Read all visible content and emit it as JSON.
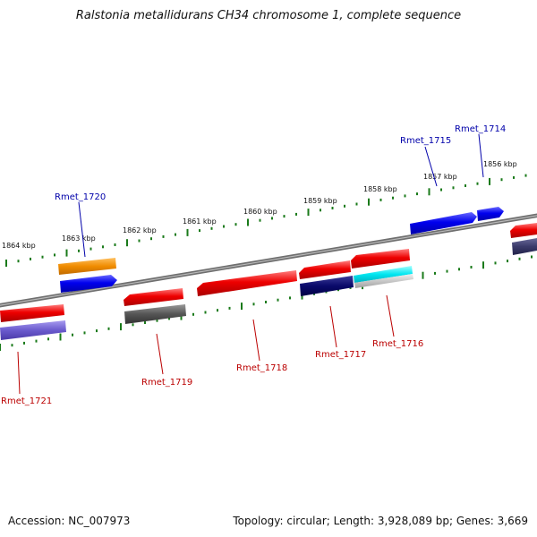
{
  "title": "Ralstonia metallidurans CH34 chromosome 1, complete sequence",
  "accession": "Accession: NC_007973",
  "summary": "Topology: circular; Length: 3,928,089 bp; Genes: 3,669",
  "scale_labels": [
    "1864 kbp",
    "1863 kbp",
    "1862 kbp",
    "1861 kbp",
    "1860 kbp",
    "1859 kbp",
    "1858 kbp",
    "1857 kbp",
    "1856 kbp"
  ],
  "genes": {
    "Rmet_1714": "Rmet_1714",
    "Rmet_1715": "Rmet_1715",
    "Rmet_1716": "Rmet_1716",
    "Rmet_1717": "Rmet_1717",
    "Rmet_1718": "Rmet_1718",
    "Rmet_1719": "Rmet_1719",
    "Rmet_1720": "Rmet_1720",
    "Rmet_1721": "Rmet_1721"
  },
  "colors": {
    "forward_label": "#0000aa",
    "reverse_label": "#bb0000",
    "tick": "#1a7a1a",
    "backbone": "#808080"
  }
}
